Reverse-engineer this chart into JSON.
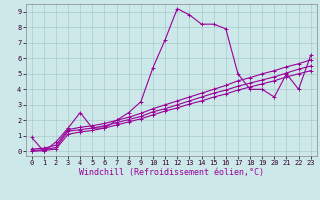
{
  "title": "",
  "xlabel": "Windchill (Refroidissement éolien,°C)",
  "ylabel": "",
  "xlim": [
    -0.5,
    23.5
  ],
  "ylim": [
    -0.3,
    9.5
  ],
  "xticks": [
    0,
    1,
    2,
    3,
    4,
    5,
    6,
    7,
    8,
    9,
    10,
    11,
    12,
    13,
    14,
    15,
    16,
    17,
    18,
    19,
    20,
    21,
    22,
    23
  ],
  "yticks": [
    0,
    1,
    2,
    3,
    4,
    5,
    6,
    7,
    8,
    9
  ],
  "background_color": "#cce8e8",
  "grid_color": "#aacccc",
  "line_color": "#990099",
  "series": [
    {
      "x": [
        0,
        1,
        2,
        3,
        4,
        5,
        6,
        7,
        8,
        9,
        10,
        11,
        12,
        13,
        14,
        15,
        16,
        17,
        18,
        19,
        20,
        21,
        22,
        23
      ],
      "y": [
        0.9,
        0.0,
        0.6,
        1.5,
        2.5,
        1.5,
        1.5,
        2.0,
        2.5,
        3.2,
        5.4,
        7.2,
        9.2,
        8.8,
        8.2,
        8.2,
        7.9,
        5.0,
        4.0,
        4.0,
        3.5,
        5.0,
        4.0,
        6.2
      ]
    },
    {
      "x": [
        0,
        1,
        2,
        3,
        4,
        5,
        6,
        7,
        8,
        9,
        10,
        11,
        12,
        13,
        14,
        15,
        16,
        17,
        18,
        19,
        20,
        21,
        22,
        23
      ],
      "y": [
        0.05,
        0.1,
        0.25,
        1.3,
        1.4,
        1.5,
        1.65,
        1.85,
        2.05,
        2.25,
        2.55,
        2.75,
        3.0,
        3.25,
        3.5,
        3.75,
        3.95,
        4.2,
        4.4,
        4.6,
        4.8,
        5.05,
        5.3,
        5.5
      ]
    },
    {
      "x": [
        0,
        1,
        2,
        3,
        4,
        5,
        6,
        7,
        8,
        9,
        10,
        11,
        12,
        13,
        14,
        15,
        16,
        17,
        18,
        19,
        20,
        21,
        22,
        23
      ],
      "y": [
        0.15,
        0.2,
        0.4,
        1.4,
        1.55,
        1.65,
        1.8,
        2.0,
        2.2,
        2.45,
        2.75,
        3.0,
        3.25,
        3.5,
        3.75,
        4.0,
        4.25,
        4.55,
        4.75,
        5.0,
        5.2,
        5.45,
        5.65,
        5.9
      ]
    },
    {
      "x": [
        0,
        1,
        2,
        3,
        4,
        5,
        6,
        7,
        8,
        9,
        10,
        11,
        12,
        13,
        14,
        15,
        16,
        17,
        18,
        19,
        20,
        21,
        22,
        23
      ],
      "y": [
        0.0,
        0.05,
        0.15,
        1.1,
        1.25,
        1.35,
        1.5,
        1.7,
        1.9,
        2.1,
        2.35,
        2.6,
        2.8,
        3.05,
        3.25,
        3.5,
        3.7,
        3.95,
        4.15,
        4.35,
        4.55,
        4.8,
        5.0,
        5.2
      ]
    }
  ],
  "marker": "+",
  "markersize": 3,
  "linewidth": 0.8,
  "tick_fontsize": 5,
  "xlabel_fontsize": 6,
  "axis_bg": "#cce8e8"
}
